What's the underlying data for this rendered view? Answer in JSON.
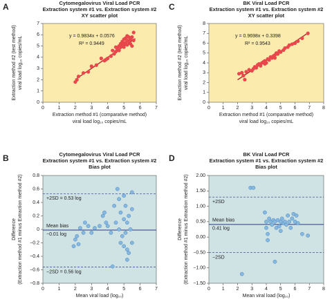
{
  "chart_data": [
    {
      "type": "scatter",
      "panel": "A",
      "title": "Cytomegalovirus Viral Load PCR",
      "subtitle": "Extraction system #1 vs. Extraction system #2",
      "subtitle2": "XY scatter plot",
      "xlabel": [
        "Extraction method #1 (comparative method)",
        "viral load log₁₀ copies/mL"
      ],
      "ylabel": [
        "Extraction method #2 (test method)",
        "viral load log₁₀ copies/mL"
      ],
      "xlim": [
        0,
        7
      ],
      "ylim": [
        0,
        7
      ],
      "xticks": [
        0,
        1,
        2,
        3,
        4,
        5,
        6,
        7
      ],
      "yticks": [
        0,
        1,
        2,
        3,
        4,
        5,
        6,
        7
      ],
      "background": "#fbecae",
      "color": "#e8474c",
      "x": [
        2.0,
        2.1,
        2.2,
        2.5,
        2.8,
        3.0,
        3.3,
        3.6,
        3.8,
        3.9,
        4.0,
        4.2,
        4.3,
        4.4,
        4.5,
        4.5,
        4.6,
        4.7,
        4.7,
        4.8,
        4.8,
        4.9,
        4.9,
        5.0,
        5.0,
        5.0,
        5.1,
        5.1,
        5.2,
        5.2,
        5.3,
        5.3,
        5.4,
        5.4,
        5.5,
        5.5,
        5.6,
        5.6,
        5.2,
        4.6
      ],
      "y": [
        1.8,
        2.0,
        2.3,
        2.6,
        2.7,
        3.2,
        3.3,
        3.9,
        3.7,
        3.8,
        3.9,
        4.1,
        4.6,
        4.3,
        4.9,
        4.5,
        4.8,
        5.0,
        4.6,
        5.2,
        4.9,
        5.4,
        5.0,
        5.6,
        5.2,
        4.9,
        5.3,
        5.7,
        5.1,
        5.5,
        5.8,
        5.4,
        5.2,
        5.6,
        5.0,
        5.8,
        5.5,
        6.2,
        5.9,
        4.7
      ],
      "fit": {
        "label": "y = 0.9834x + 0.0576",
        "r2_label": "R² = 0.9449",
        "slope": 0.9834,
        "intercept": 0.0576,
        "x": [
          2.0,
          5.7
        ],
        "color": "#b3282d"
      }
    },
    {
      "type": "scatter",
      "panel": "C",
      "title": "BK Viral Load PCR",
      "subtitle": "Extraction system #1 vs. Extraction system #2",
      "subtitle2": "XY scatter plot",
      "xlabel": [
        "Extraction method #1 (comparative method)",
        "viral load log₁₀ copies/mL"
      ],
      "ylabel": [
        "Extraction method #2 (test method)",
        "viral load log₁₀ copies/mL"
      ],
      "xlim": [
        0,
        8
      ],
      "ylim": [
        0,
        8
      ],
      "xticks": [
        0,
        1,
        2,
        3,
        4,
        5,
        6,
        7,
        8
      ],
      "yticks": [
        0,
        1,
        2,
        3,
        4,
        5,
        6,
        7,
        8
      ],
      "background": "#fbecae",
      "color": "#e8474c",
      "x": [
        2.1,
        2.3,
        2.5,
        2.6,
        2.8,
        3.0,
        3.1,
        3.2,
        3.3,
        3.4,
        3.5,
        3.6,
        3.7,
        3.8,
        3.9,
        4.0,
        4.1,
        4.2,
        4.3,
        4.4,
        4.5,
        4.6,
        4.7,
        4.8,
        4.9,
        5.0,
        5.2,
        5.3,
        5.5,
        5.6,
        5.8,
        6.0,
        6.2,
        6.5,
        6.9,
        2.4,
        3.9,
        4.6
      ],
      "y": [
        2.9,
        3.0,
        2.3,
        3.1,
        3.3,
        3.2,
        3.4,
        3.6,
        3.5,
        3.8,
        3.9,
        3.7,
        4.0,
        4.1,
        4.2,
        4.0,
        4.4,
        4.3,
        4.6,
        4.5,
        4.7,
        4.8,
        5.0,
        4.9,
        5.2,
        5.1,
        5.3,
        5.5,
        5.6,
        5.8,
        5.9,
        6.0,
        6.2,
        6.5,
        7.0,
        2.7,
        3.9,
        4.5
      ],
      "fit": {
        "label": "y = 0.9698x + 0.3398",
        "r2_label": "R² = 0.9543",
        "slope": 0.9698,
        "intercept": 0.3398,
        "x": [
          2.0,
          6.9
        ],
        "color": "#b3282d"
      }
    },
    {
      "type": "scatter",
      "panel": "B",
      "title": "Cytomegalovirus Viral Load PCR",
      "subtitle": "Extraction system #1 vs. Extraction system #2",
      "subtitle2": "Bias plot",
      "xlabel": [
        "Mean viral load (log₁₀)"
      ],
      "ylabel": [
        "Difference",
        "(Extraction method #1 minus Extraction method #2)"
      ],
      "xlim": [
        0,
        7
      ],
      "ylim": [
        -0.8,
        0.8
      ],
      "xticks": [
        0,
        1,
        2,
        3,
        4,
        5,
        6,
        7
      ],
      "yticks": [
        {
          "value": -0.8,
          "label": "−0.8"
        },
        {
          "value": -0.6,
          "label": "−0.6"
        },
        {
          "value": -0.4,
          "label": "−0.4"
        },
        {
          "value": -0.2,
          "label": "−0.2"
        },
        0,
        0.2,
        0.4,
        0.6,
        0.8
      ],
      "background": "#cfe2e4",
      "color": "#86b8e0",
      "x": [
        1.9,
        2.0,
        2.1,
        2.2,
        2.3,
        2.5,
        2.6,
        2.8,
        3.0,
        3.2,
        3.5,
        3.7,
        3.8,
        3.9,
        4.0,
        4.2,
        4.3,
        4.4,
        4.5,
        4.6,
        4.7,
        4.7,
        4.8,
        4.8,
        4.9,
        5.0,
        5.0,
        5.0,
        5.1,
        5.1,
        5.2,
        5.2,
        5.2,
        5.3,
        5.3,
        5.4,
        5.5,
        5.5,
        5.5
      ],
      "y": [
        -0.25,
        -0.15,
        -0.1,
        -0.22,
        0.02,
        -0.05,
        0.1,
        0.05,
        -0.05,
        0.02,
        0.05,
        0.2,
        0.25,
        0.1,
        0.05,
        -0.05,
        -0.55,
        0.35,
        0.1,
        0.6,
        0.45,
        0.0,
        -0.2,
        0.25,
        -0.1,
        0.5,
        0.15,
        -0.25,
        0.35,
        -0.05,
        0.1,
        -0.3,
        -0.45,
        0.2,
        -0.35,
        0.0,
        0.55,
        -0.2,
        0.3
      ],
      "ref_lines": [
        {
          "value": 0.53,
          "style": "dashed",
          "labels": [
            "+2SD = 0.53 log"
          ],
          "label_pos": "below"
        },
        {
          "value": -0.01,
          "style": "solid",
          "labels": [
            "Mean bias",
            "−0.01 log"
          ],
          "label_pos": "split"
        },
        {
          "value": -0.56,
          "style": "dashed",
          "labels": [
            "−2SD = 0.56 log"
          ],
          "label_pos": "below"
        }
      ]
    },
    {
      "type": "scatter",
      "panel": "D",
      "title": "BK Viral Load PCR",
      "subtitle": "Extraction system #1 vs. Extraction system #2",
      "subtitle2": "Bias plot",
      "xlabel": [
        "Mean viral load (log₁₀)"
      ],
      "ylabel": [
        "Difference",
        "(Extraction method #1 minus Extraction method #2)"
      ],
      "xlim": [
        0,
        8
      ],
      "ylim": [
        -1.5,
        2.0
      ],
      "xticks": [
        0,
        1,
        2,
        3,
        4,
        5,
        6,
        7,
        8
      ],
      "yticks": [
        {
          "value": -1.5,
          "label": "−1.50"
        },
        {
          "value": -1.0,
          "label": "−1.00"
        },
        {
          "value": -0.5,
          "label": "−0.50"
        },
        {
          "value": 0,
          "label": "0.00"
        },
        {
          "value": 0.5,
          "label": "0.50"
        },
        {
          "value": 1.0,
          "label": "1.00"
        },
        {
          "value": 1.5,
          "label": "1.50"
        },
        {
          "value": 2.0,
          "label": "2.00"
        }
      ],
      "background": "#cfe2e4",
      "color": "#86b8e0",
      "x": [
        2.3,
        2.9,
        3.1,
        3.9,
        4.0,
        4.0,
        4.1,
        4.1,
        4.2,
        4.3,
        4.4,
        4.5,
        4.6,
        4.6,
        4.7,
        4.8,
        4.9,
        5.0,
        5.0,
        5.1,
        5.2,
        5.3,
        5.4,
        5.5,
        5.6,
        5.7,
        5.8,
        5.9,
        6.0,
        6.1,
        6.2,
        6.5,
        6.9
      ],
      "y": [
        -1.2,
        1.6,
        1.6,
        0.8,
        0.5,
        0.3,
        -0.1,
        0.1,
        0.6,
        0.5,
        0.4,
        0.55,
        -0.8,
        0.5,
        0.3,
        0.55,
        0.35,
        0.5,
        0.2,
        0.6,
        0.45,
        0.5,
        0.4,
        0.7,
        0.5,
        0.3,
        0.6,
        0.75,
        0.5,
        0.7,
        0.45,
        0.1,
        0.05
      ],
      "ref_lines": [
        {
          "value": 1.3,
          "style": "dashed",
          "labels": [
            "+2SD"
          ],
          "label_pos": "below"
        },
        {
          "value": 0.41,
          "style": "solid",
          "labels": [
            "Mean bias",
            "0.41 log"
          ],
          "label_pos": "split"
        },
        {
          "value": -0.5,
          "style": "dashed",
          "labels": [
            "−2SD"
          ],
          "label_pos": "below"
        }
      ]
    }
  ]
}
